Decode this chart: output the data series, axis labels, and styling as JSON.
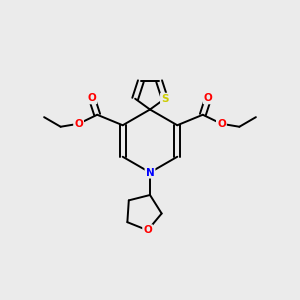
{
  "bg_color": "#ebebeb",
  "bond_color": "#000000",
  "N_color": "#0000ff",
  "O_color": "#ff0000",
  "S_color": "#cccc00",
  "line_width": 1.4,
  "fig_w": 3.0,
  "fig_h": 3.0,
  "dpi": 100,
  "xlim": [
    0,
    10
  ],
  "ylim": [
    0,
    10
  ]
}
